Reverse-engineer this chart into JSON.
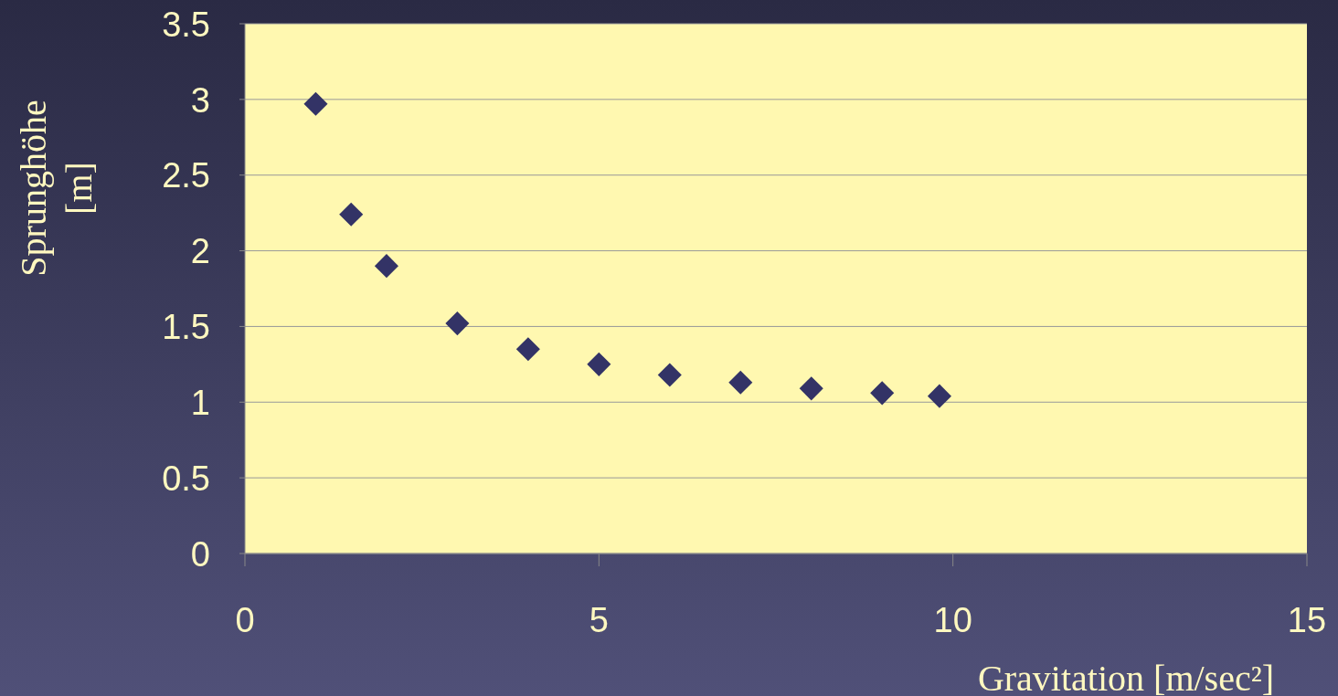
{
  "chart_data": {
    "type": "scatter",
    "xlabel": "Gravitation [m/sec²]",
    "ylabel": "Sprunghöhe [m]",
    "x": [
      1,
      1.5,
      2,
      3,
      4,
      5,
      6,
      7,
      8,
      9,
      9.81
    ],
    "series": [
      {
        "color": "#333366",
        "values": [
          2.97,
          2.24,
          1.9,
          1.52,
          1.35,
          1.25,
          1.18,
          1.13,
          1.09,
          1.06,
          1.04
        ]
      }
    ],
    "xlim": [
      0,
      15
    ],
    "xticks": [
      0,
      5,
      10,
      15
    ],
    "ylim": [
      0,
      3.5
    ],
    "yticks": [
      0,
      0.5,
      1,
      1.5,
      2,
      2.5,
      3,
      3.5
    ],
    "grid": "y",
    "marker": "diamond"
  }
}
